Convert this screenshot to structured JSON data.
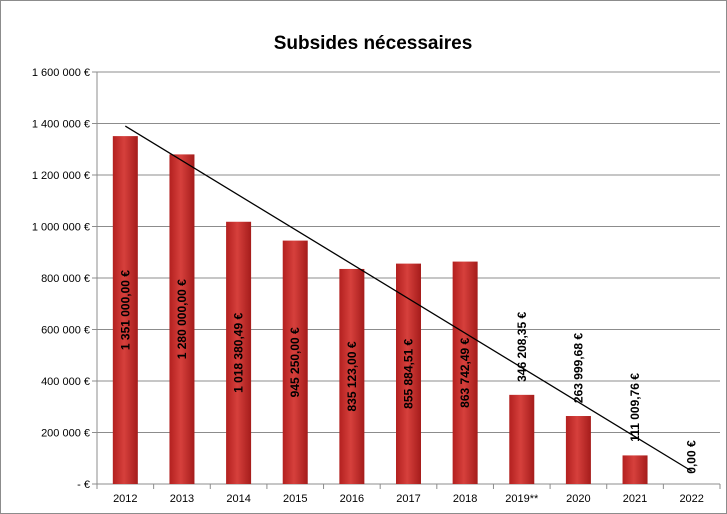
{
  "chart_data": {
    "type": "bar",
    "title": "Subsides nécessaires",
    "xlabel": "",
    "ylabel": "",
    "categories": [
      "2012",
      "2013",
      "2014",
      "2015",
      "2016",
      "2017",
      "2018",
      "2019**",
      "2020",
      "2021",
      "2022"
    ],
    "values": [
      1351000.0,
      1280000.0,
      1018380.49,
      945250.0,
      835123.0,
      855884.51,
      863742.49,
      346208.35,
      263999.68,
      111009.76,
      0.0
    ],
    "data_labels": [
      "1 351 000,00 €",
      "1 280 000,00 €",
      "1 018 380,49 €",
      "945 250,00 €",
      "835 123,00 €",
      "855 884,51 €",
      "863 742,49 €",
      "346 208,35 €",
      "263 999,68 €",
      "111 009,76 €",
      "0,00 €"
    ],
    "ylim": [
      0,
      1600000
    ],
    "yticks": [
      0,
      200000,
      400000,
      600000,
      800000,
      1000000,
      1200000,
      1400000,
      1600000
    ],
    "ytick_labels": [
      "-   €",
      "200 000 €",
      "400 000 €",
      "600 000 €",
      "800 000 €",
      "1 000 000 €",
      "1 200 000 €",
      "1 400 000 €",
      "1 600 000 €"
    ],
    "grid": true,
    "legend": "none",
    "bar_color": "#c0302e",
    "trendline": {
      "type": "linear",
      "from": [
        "2012",
        1390000
      ],
      "to": [
        "2022",
        50000
      ],
      "color": "#000000"
    }
  }
}
